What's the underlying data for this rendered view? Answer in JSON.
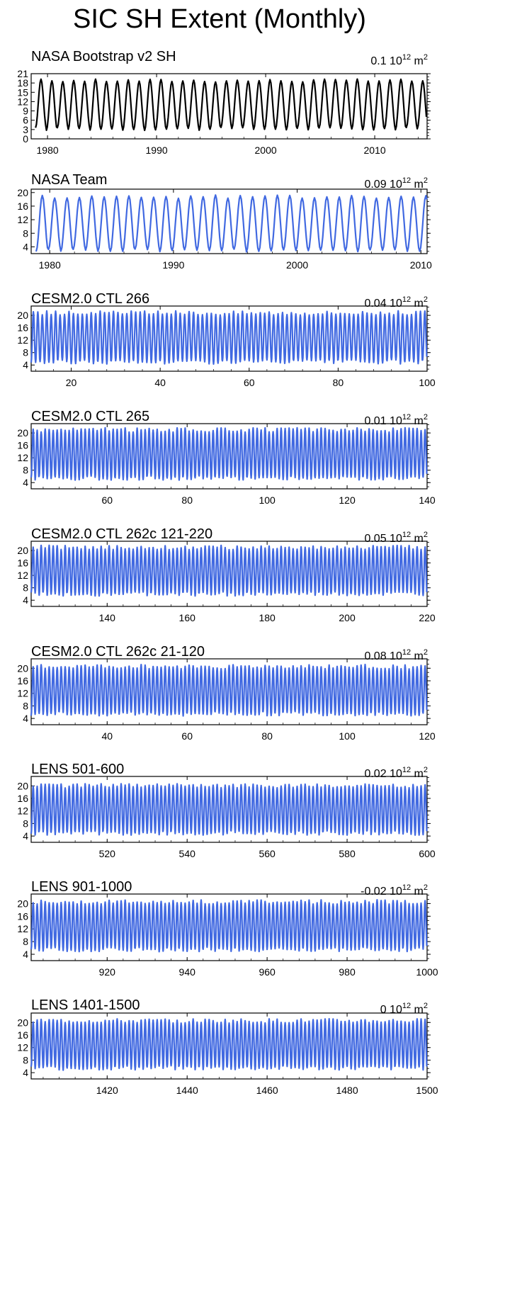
{
  "title": "SIC SH Extent (Monthly)",
  "chart_data": [
    {
      "type": "line",
      "title": "NASA Bootstrap v2 SH",
      "right_label": "0.1 10",
      "right_exp": "12",
      "right_unit": " m",
      "right_unit_exp": "2",
      "color": "#000000",
      "x_range": [
        1978.5,
        2014.8
      ],
      "x_ticks": [
        1980,
        1990,
        2000,
        2010
      ],
      "y_range": [
        0,
        21
      ],
      "y_ticks": [
        0,
        3,
        6,
        9,
        12,
        15,
        18,
        21
      ],
      "start": 1978.9,
      "n_cycles": 36,
      "cycle_len": 1,
      "min": 3.2,
      "max": 18.8,
      "variation": 0.5
    },
    {
      "type": "line",
      "title": "NASA Team",
      "right_label": "0.09 10",
      "right_exp": "12",
      "right_unit": " m",
      "right_unit_exp": "2",
      "color": "#4169E1",
      "x_range": [
        1978.5,
        2010.5
      ],
      "x_ticks": [
        1980,
        1990,
        2000,
        2010
      ],
      "y_range": [
        2,
        21
      ],
      "y_ticks": [
        4,
        8,
        12,
        16,
        20
      ],
      "start": 1978.9,
      "n_cycles": 32,
      "cycle_len": 1,
      "min": 3.0,
      "max": 18.8,
      "variation": 0.5
    },
    {
      "type": "line",
      "title": "CESM2.0 CTL 266",
      "right_label": "0.04 10",
      "right_exp": "12",
      "right_unit": " m",
      "right_unit_exp": "2",
      "color": "#4169E1",
      "x_range": [
        11,
        100
      ],
      "x_ticks": [
        20,
        40,
        60,
        80,
        100
      ],
      "y_range": [
        2,
        23
      ],
      "y_ticks": [
        4,
        8,
        12,
        16,
        20
      ],
      "start": 11,
      "n_cycles": 89,
      "cycle_len": 1,
      "min": 5.0,
      "max": 20.8,
      "variation": 0.7
    },
    {
      "type": "line",
      "title": "CESM2.0 CTL 265",
      "right_label": "0.01 10",
      "right_exp": "12",
      "right_unit": " m",
      "right_unit_exp": "2",
      "color": "#4169E1",
      "x_range": [
        41,
        140
      ],
      "x_ticks": [
        60,
        80,
        100,
        120,
        140
      ],
      "y_range": [
        2,
        23
      ],
      "y_ticks": [
        4,
        8,
        12,
        16,
        20
      ],
      "start": 41,
      "n_cycles": 99,
      "cycle_len": 1,
      "min": 5.5,
      "max": 21.0,
      "variation": 0.7
    },
    {
      "type": "line",
      "title": "CESM2.0 CTL 262c 121-220",
      "right_label": "0.05 10",
      "right_exp": "12",
      "right_unit": " m",
      "right_unit_exp": "2",
      "color": "#4169E1",
      "x_range": [
        121,
        220
      ],
      "x_ticks": [
        140,
        160,
        180,
        200,
        220
      ],
      "y_range": [
        2,
        23
      ],
      "y_ticks": [
        4,
        8,
        12,
        16,
        20
      ],
      "start": 121,
      "n_cycles": 99,
      "cycle_len": 1,
      "min": 6.0,
      "max": 21.0,
      "variation": 0.7
    },
    {
      "type": "line",
      "title": "CESM2.0 CTL 262c 21-120",
      "right_label": "0.08 10",
      "right_exp": "12",
      "right_unit": " m",
      "right_unit_exp": "2",
      "color": "#4169E1",
      "x_range": [
        21,
        120
      ],
      "x_ticks": [
        40,
        60,
        80,
        100,
        120
      ],
      "y_range": [
        2,
        23
      ],
      "y_ticks": [
        4,
        8,
        12,
        16,
        20
      ],
      "start": 21,
      "n_cycles": 99,
      "cycle_len": 1,
      "min": 5.5,
      "max": 20.5,
      "variation": 0.7
    },
    {
      "type": "line",
      "title": "LENS 501-600",
      "right_label": "0.02 10",
      "right_exp": "12",
      "right_unit": " m",
      "right_unit_exp": "2",
      "color": "#4169E1",
      "x_range": [
        501,
        600
      ],
      "x_ticks": [
        520,
        540,
        560,
        580,
        600
      ],
      "y_range": [
        2,
        23
      ],
      "y_ticks": [
        4,
        8,
        12,
        16,
        20
      ],
      "start": 501,
      "n_cycles": 99,
      "cycle_len": 1,
      "min": 5.0,
      "max": 20.0,
      "variation": 0.7
    },
    {
      "type": "line",
      "title": "LENS 901-1000",
      "right_label": "-0.02 10",
      "right_exp": "12",
      "right_unit": " m",
      "right_unit_exp": "2",
      "color": "#4169E1",
      "x_range": [
        901,
        1000
      ],
      "x_ticks": [
        920,
        940,
        960,
        980,
        1000
      ],
      "y_range": [
        2,
        23
      ],
      "y_ticks": [
        4,
        8,
        12,
        16,
        20
      ],
      "start": 901,
      "n_cycles": 99,
      "cycle_len": 1,
      "min": 5.5,
      "max": 20.5,
      "variation": 0.7
    },
    {
      "type": "line",
      "title": "LENS 1401-1500",
      "right_label": "0 10",
      "right_exp": "12",
      "right_unit": " m",
      "right_unit_exp": "2",
      "color": "#4169E1",
      "x_range": [
        1401,
        1500
      ],
      "x_ticks": [
        1420,
        1440,
        1460,
        1480,
        1500
      ],
      "y_range": [
        2,
        23
      ],
      "y_ticks": [
        4,
        8,
        12,
        16,
        20
      ],
      "start": 1401,
      "n_cycles": 99,
      "cycle_len": 1,
      "min": 5.5,
      "max": 20.5,
      "variation": 0.7
    }
  ]
}
